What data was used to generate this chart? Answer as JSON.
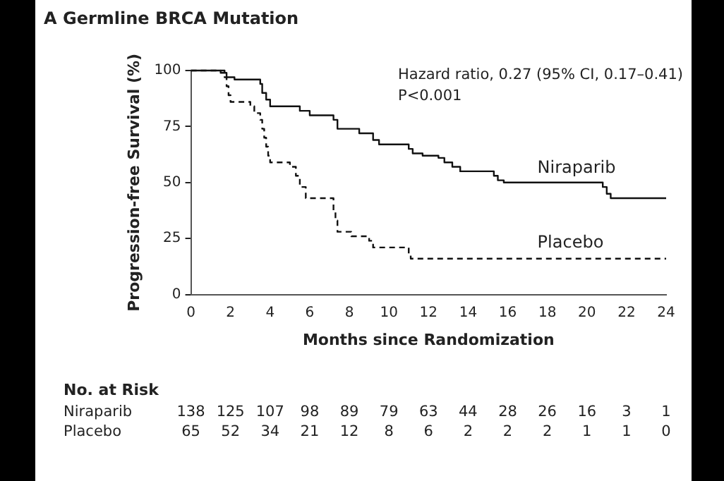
{
  "chart_data": {
    "type": "line",
    "title": "A Germline BRCA Mutation",
    "xlabel": "Months since Randomization",
    "ylabel": "Progression-free Survival (%)",
    "annotations": [
      "Hazard ratio, 0.27 (95% CI, 0.17–0.41)",
      "P<0.001",
      "No. at Risk",
      "Niraparib 138 125 107 98 89 79 63 44 28 26 16 3 1",
      "Placebo 65 52 34 21 12 8 6 2 2 2 1 1 0"
    ],
    "series": [
      {
        "name": "Niraparib",
        "color": "#111111",
        "line_style": "solid",
        "x": [
          0,
          1.5,
          1.5,
          1.8,
          1.8,
          2.2,
          2.2,
          3.5,
          3.5,
          3.6,
          3.6,
          3.8,
          3.8,
          4,
          4,
          5.5,
          5.5,
          6,
          6,
          7.2,
          7.2,
          7.4,
          7.4,
          8.5,
          8.5,
          9.2,
          9.2,
          9.5,
          9.5,
          11,
          11,
          11.2,
          11.2,
          11.7,
          11.7,
          12.5,
          12.5,
          12.8,
          12.8,
          13.2,
          13.2,
          13.6,
          13.6,
          15.3,
          15.3,
          15.5,
          15.5,
          15.8,
          15.8,
          20.8,
          20.8,
          21,
          21,
          21.2,
          21.2,
          24
        ],
        "values": [
          100,
          100,
          99,
          99,
          97,
          97,
          96,
          96,
          94,
          94,
          90,
          90,
          87,
          87,
          84,
          84,
          82,
          82,
          80,
          80,
          78,
          78,
          74,
          74,
          72,
          72,
          69,
          69,
          67,
          67,
          65,
          65,
          63,
          63,
          62,
          62,
          61,
          61,
          59,
          59,
          57,
          57,
          55,
          55,
          53,
          53,
          51,
          51,
          50,
          50,
          48,
          48,
          45,
          45,
          43,
          43
        ]
      },
      {
        "name": "Placebo",
        "color": "#111111",
        "line_style": "dashed",
        "x": [
          0,
          1.7,
          1.7,
          1.8,
          1.8,
          1.9,
          1.9,
          2,
          2,
          3,
          3,
          3.2,
          3.2,
          3.5,
          3.5,
          3.6,
          3.6,
          3.7,
          3.7,
          3.8,
          3.8,
          3.9,
          3.9,
          4,
          4,
          5,
          5,
          5.3,
          5.3,
          5.5,
          5.5,
          5.8,
          5.8,
          7.2,
          7.2,
          7.3,
          7.3,
          7.4,
          7.4,
          8.1,
          8.1,
          9,
          9,
          9.2,
          9.2,
          11,
          11,
          11.1,
          11.1,
          24
        ],
        "values": [
          100,
          100,
          97,
          97,
          93,
          93,
          89,
          89,
          86,
          86,
          84,
          84,
          81,
          81,
          78,
          78,
          74,
          74,
          70,
          70,
          66,
          66,
          62,
          62,
          59,
          59,
          57,
          57,
          53,
          53,
          48,
          48,
          43,
          43,
          37,
          37,
          33,
          33,
          28,
          28,
          26,
          26,
          24,
          24,
          21,
          21,
          18,
          18,
          16,
          16
        ]
      }
    ],
    "xlim": [
      0,
      24
    ],
    "xticks": [
      0,
      2,
      4,
      6,
      8,
      10,
      12,
      14,
      16,
      18,
      20,
      22,
      24
    ],
    "ylim": [
      0,
      100
    ],
    "yticks": [
      0,
      25,
      50,
      75,
      100
    ],
    "grid": false,
    "legend": false,
    "marker": "none"
  }
}
